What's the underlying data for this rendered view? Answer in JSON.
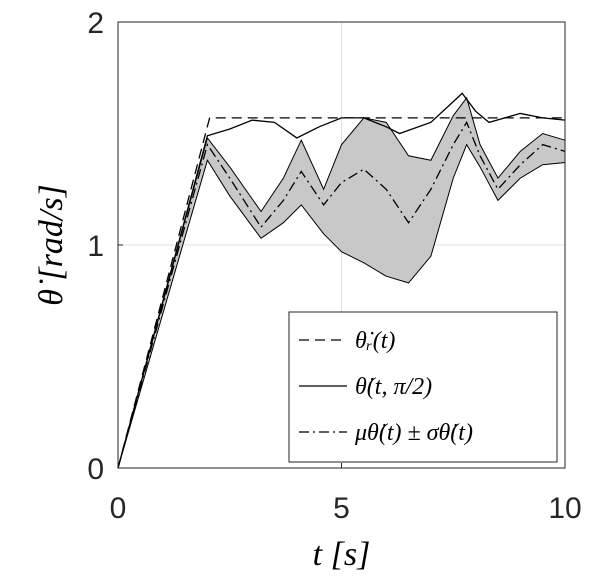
{
  "chart_data": {
    "type": "line",
    "xlabel": "t [s]",
    "ylabel": "θ̇ [rad/s]",
    "xlim": [
      0,
      10
    ],
    "ylim": [
      0,
      2
    ],
    "xticks": [
      0,
      5,
      10
    ],
    "yticks": [
      0,
      1,
      2
    ],
    "grid": true,
    "legend": "lower right",
    "series": [
      {
        "name": "θ̇ᵣ(t)",
        "color": "#000000",
        "dash": "dashed",
        "x": [
          0,
          2.05,
          10
        ],
        "values": [
          0,
          1.57,
          1.57
        ]
      },
      {
        "name": "θ̇(t, π/2)",
        "color": "#000000",
        "dash": "solid",
        "x": [
          0,
          2,
          2.5,
          3,
          3.5,
          4,
          4.5,
          5,
          5.5,
          6,
          6.3,
          7,
          7.7,
          8,
          8.3,
          9,
          9.5,
          10
        ],
        "values": [
          0,
          1.49,
          1.52,
          1.56,
          1.55,
          1.48,
          1.53,
          1.57,
          1.57,
          1.53,
          1.5,
          1.55,
          1.68,
          1.6,
          1.55,
          1.59,
          1.57,
          1.56
        ]
      },
      {
        "name": "μθ̇(t) ± σθ̇(t)",
        "color": "#000000",
        "dash": "dashdot",
        "band_color": "#c8c8c8",
        "x": [
          0,
          2,
          2.5,
          3.2,
          3.7,
          4.1,
          4.6,
          5,
          5.5,
          6,
          6.5,
          7,
          7.5,
          7.8,
          8.1,
          8.5,
          9,
          9.5,
          10
        ],
        "values": [
          0,
          1.45,
          1.3,
          1.08,
          1.2,
          1.33,
          1.18,
          1.28,
          1.34,
          1.25,
          1.1,
          1.25,
          1.45,
          1.55,
          1.4,
          1.25,
          1.36,
          1.45,
          1.42
        ],
        "upper": [
          0,
          1.48,
          1.35,
          1.15,
          1.3,
          1.47,
          1.25,
          1.45,
          1.57,
          1.55,
          1.4,
          1.38,
          1.58,
          1.66,
          1.45,
          1.3,
          1.42,
          1.5,
          1.47
        ],
        "lower": [
          0,
          1.38,
          1.22,
          1.03,
          1.1,
          1.18,
          1.05,
          0.97,
          0.92,
          0.86,
          0.83,
          0.95,
          1.3,
          1.45,
          1.35,
          1.2,
          1.3,
          1.36,
          1.37
        ]
      }
    ]
  }
}
